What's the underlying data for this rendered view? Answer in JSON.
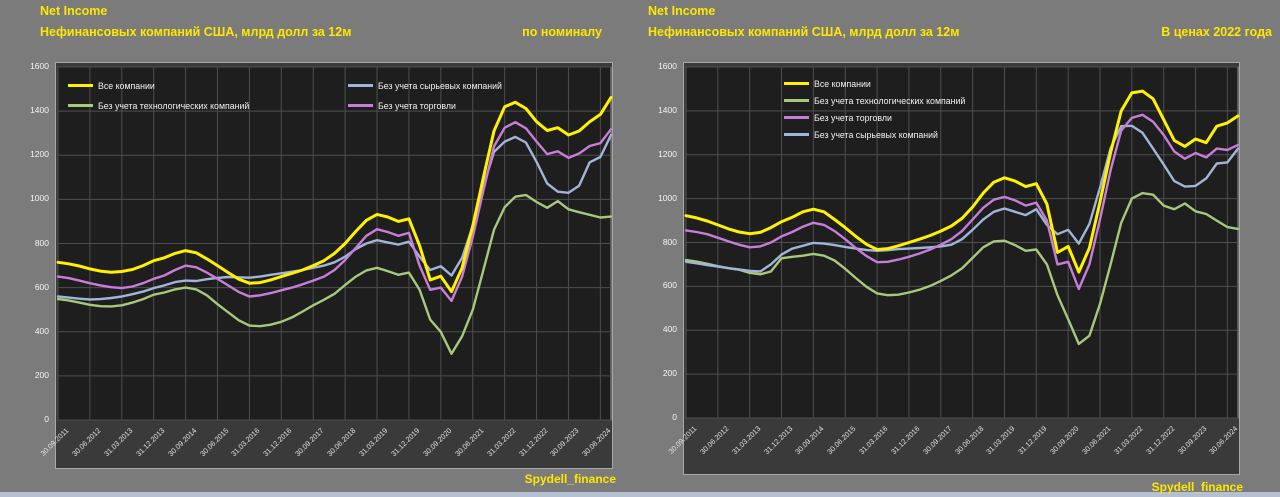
{
  "page": {
    "background": "#7b7b7b",
    "footer_bar_color": "#b5c1d2"
  },
  "chart_data": [
    {
      "type": "line",
      "title": "Net Income",
      "subtitle": "Нефинансовых компаний США, млрд долл за 12м",
      "corner_label": "по номиналу",
      "watermark": "Spydell_finance",
      "ylim": [
        0,
        1600
      ],
      "ytick_step": 200,
      "grid": true,
      "legend_position": "top-inside-two-columns",
      "x_labels": [
        "30.09.2011",
        "30.06.2012",
        "31.03.2013",
        "31.12.2013",
        "30.09.2014",
        "30.06.2015",
        "31.03.2016",
        "31.12.2016",
        "30.09.2017",
        "30.06.2018",
        "31.03.2019",
        "31.12.2019",
        "30.09.2020",
        "30.06.2021",
        "31.03.2022",
        "31.12.2022",
        "30.09.2023",
        "30.06.2024"
      ],
      "xtick_every": 3,
      "legend": [
        {
          "label": "Все компании",
          "color": "#fff200"
        },
        {
          "label": "Без учета сырьевых компаний",
          "color": "#a0b5d8"
        },
        {
          "label": "Без учета технологических компаний",
          "color": "#a8c87c"
        },
        {
          "label": "Без учета торговли",
          "color": "#c87ed9"
        }
      ],
      "series": [
        {
          "name": "Все компании",
          "color": "#fff200",
          "values": [
            715,
            708,
            698,
            685,
            675,
            670,
            673,
            682,
            700,
            722,
            735,
            755,
            768,
            758,
            730,
            700,
            668,
            638,
            620,
            623,
            635,
            650,
            665,
            680,
            700,
            722,
            755,
            800,
            855,
            905,
            932,
            920,
            900,
            912,
            790,
            635,
            652,
            582,
            690,
            880,
            1100,
            1310,
            1420,
            1440,
            1412,
            1352,
            1312,
            1325,
            1292,
            1310,
            1352,
            1385,
            1462
          ]
        },
        {
          "name": "Без учета торговли",
          "color": "#c87ed9",
          "values": [
            650,
            643,
            632,
            620,
            610,
            602,
            598,
            605,
            620,
            640,
            655,
            680,
            700,
            692,
            668,
            640,
            610,
            580,
            560,
            565,
            575,
            588,
            600,
            615,
            632,
            650,
            680,
            725,
            780,
            835,
            865,
            852,
            835,
            848,
            700,
            590,
            600,
            540,
            650,
            830,
            1040,
            1240,
            1325,
            1350,
            1322,
            1262,
            1205,
            1218,
            1188,
            1208,
            1242,
            1255,
            1318
          ]
        },
        {
          "name": "Без учета сырьевых компаний",
          "color": "#a0b5d8",
          "values": [
            560,
            555,
            550,
            546,
            548,
            553,
            560,
            570,
            582,
            598,
            610,
            625,
            632,
            630,
            638,
            644,
            648,
            647,
            645,
            650,
            658,
            665,
            672,
            680,
            690,
            700,
            715,
            740,
            775,
            800,
            815,
            805,
            795,
            808,
            740,
            680,
            697,
            655,
            735,
            880,
            1060,
            1215,
            1262,
            1283,
            1258,
            1170,
            1072,
            1035,
            1030,
            1062,
            1168,
            1192,
            1292
          ]
        },
        {
          "name": "Без учета технологических компаний",
          "color": "#a8c87c",
          "values": [
            548,
            542,
            532,
            522,
            516,
            515,
            520,
            532,
            548,
            568,
            578,
            592,
            600,
            592,
            565,
            525,
            488,
            452,
            428,
            425,
            432,
            445,
            465,
            492,
            520,
            545,
            572,
            612,
            650,
            678,
            690,
            675,
            658,
            668,
            590,
            455,
            400,
            300,
            380,
            500,
            680,
            862,
            965,
            1012,
            1020,
            988,
            962,
            992,
            955,
            942,
            930,
            918,
            922
          ]
        }
      ]
    },
    {
      "type": "line",
      "title": "Net Income",
      "subtitle": "Нефинансовых компаний США, млрд долл за 12м",
      "corner_label": "В ценах 2022 года",
      "watermark": "Spydell_finance",
      "ylim": [
        0,
        1600
      ],
      "ytick_step": 200,
      "grid": true,
      "legend_position": "top-inside-single-column",
      "x_labels": [
        "30.09.2011",
        "30.06.2012",
        "31.03.2013",
        "31.12.2013",
        "30.09.2014",
        "30.06.2015",
        "31.03.2016",
        "31.12.2016",
        "30.09.2017",
        "30.06.2018",
        "31.03.2019",
        "31.12.2019",
        "30.09.2020",
        "30.06.2021",
        "31.03.2022",
        "31.12.2022",
        "30.09.2023",
        "30.06.2024"
      ],
      "xtick_every": 3,
      "legend": [
        {
          "label": "Все компании",
          "color": "#fff200"
        },
        {
          "label": "Без учета технологических компаний",
          "color": "#a8c87c"
        },
        {
          "label": "Без учета торговли",
          "color": "#c87ed9"
        },
        {
          "label": "Без учета сырьевых компаний",
          "color": "#a0b5d8"
        }
      ],
      "series": [
        {
          "name": "Все компании",
          "color": "#fff200",
          "values": [
            922,
            912,
            898,
            880,
            862,
            848,
            840,
            846,
            868,
            895,
            915,
            940,
            952,
            940,
            905,
            868,
            828,
            792,
            768,
            772,
            785,
            800,
            815,
            832,
            852,
            875,
            910,
            962,
            1025,
            1075,
            1095,
            1080,
            1055,
            1068,
            975,
            755,
            782,
            665,
            775,
            985,
            1210,
            1400,
            1482,
            1490,
            1455,
            1360,
            1265,
            1238,
            1272,
            1255,
            1330,
            1345,
            1377
          ]
        },
        {
          "name": "Без учета торговли",
          "color": "#c87ed9",
          "values": [
            855,
            848,
            838,
            822,
            805,
            790,
            778,
            782,
            800,
            828,
            848,
            872,
            890,
            880,
            852,
            815,
            775,
            738,
            710,
            712,
            722,
            735,
            750,
            768,
            790,
            815,
            852,
            905,
            958,
            995,
            1008,
            992,
            968,
            982,
            900,
            700,
            712,
            588,
            700,
            905,
            1130,
            1310,
            1368,
            1382,
            1350,
            1290,
            1215,
            1182,
            1208,
            1188,
            1228,
            1222,
            1245
          ]
        },
        {
          "name": "Без учета сырьевых компаний",
          "color": "#a0b5d8",
          "values": [
            712,
            705,
            697,
            690,
            683,
            677,
            671,
            668,
            700,
            745,
            772,
            785,
            798,
            795,
            788,
            780,
            772,
            766,
            762,
            765,
            770,
            772,
            775,
            778,
            782,
            790,
            815,
            858,
            905,
            940,
            955,
            940,
            925,
            952,
            880,
            838,
            858,
            795,
            885,
            1050,
            1230,
            1330,
            1332,
            1300,
            1228,
            1155,
            1080,
            1055,
            1058,
            1092,
            1160,
            1165,
            1228
          ]
        },
        {
          "name": "Без учета технологических компаний",
          "color": "#a8c87c",
          "values": [
            720,
            713,
            703,
            692,
            683,
            676,
            662,
            655,
            668,
            728,
            735,
            740,
            748,
            740,
            718,
            680,
            638,
            598,
            568,
            560,
            562,
            572,
            585,
            602,
            625,
            650,
            682,
            730,
            778,
            805,
            808,
            788,
            762,
            768,
            700,
            560,
            450,
            338,
            375,
            520,
            700,
            890,
            1000,
            1025,
            1018,
            968,
            952,
            978,
            942,
            930,
            900,
            870,
            862
          ]
        }
      ]
    }
  ]
}
